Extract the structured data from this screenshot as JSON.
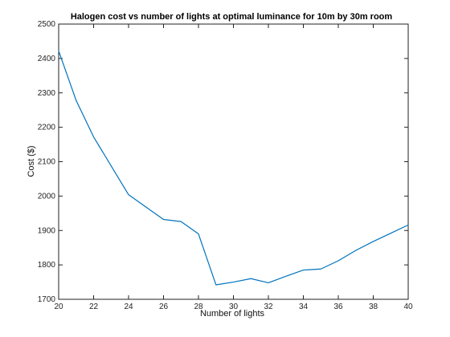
{
  "chart_data": {
    "type": "line",
    "title": "Halogen cost vs number of lights at optimal luminance for 10m by 30m room",
    "xlabel": "Number of lights",
    "ylabel": "Cost ($)",
    "xlim": [
      20,
      40
    ],
    "ylim": [
      1700,
      2500
    ],
    "xticks": [
      20,
      22,
      24,
      26,
      28,
      30,
      32,
      34,
      36,
      38,
      40
    ],
    "yticks": [
      1700,
      1800,
      1900,
      2000,
      2100,
      2200,
      2300,
      2400,
      2500
    ],
    "grid": false,
    "series": [
      {
        "color": "#0072bd",
        "x": [
          20,
          21,
          22,
          23,
          24,
          25,
          26,
          27,
          28,
          29,
          30,
          31,
          32,
          33,
          34,
          35,
          36,
          37,
          38,
          39,
          40
        ],
        "y": [
          2422,
          2278,
          2172,
          2088,
          2004,
          1968,
          1932,
          1926,
          1890,
          1742,
          1750,
          1760,
          1748,
          1767,
          1785,
          1788,
          1812,
          1842,
          1868,
          1892,
          1916
        ]
      }
    ]
  }
}
